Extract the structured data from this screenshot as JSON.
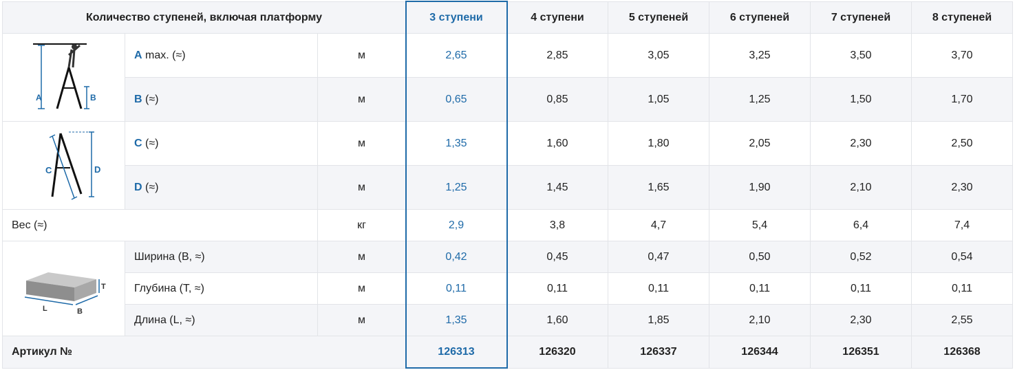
{
  "header": {
    "title": "Количество ступеней, включая платформу",
    "columns": [
      "3 ступени",
      "4 ступени",
      "5 ступеней",
      "6 ступеней",
      "7 ступеней",
      "8 ступеней"
    ]
  },
  "rows": [
    {
      "letter": "A",
      "label": "max. (≈)",
      "unit": "м",
      "values": [
        "2,65",
        "2,85",
        "3,05",
        "3,25",
        "3,50",
        "3,70"
      ]
    },
    {
      "letter": "B",
      "label": "(≈)",
      "unit": "м",
      "values": [
        "0,65",
        "0,85",
        "1,05",
        "1,25",
        "1,50",
        "1,70"
      ]
    },
    {
      "letter": "C",
      "label": "(≈)",
      "unit": "м",
      "values": [
        "1,35",
        "1,60",
        "1,80",
        "2,05",
        "2,30",
        "2,50"
      ]
    },
    {
      "letter": "D",
      "label": "(≈)",
      "unit": "м",
      "values": [
        "1,25",
        "1,45",
        "1,65",
        "1,90",
        "2,10",
        "2,30"
      ]
    },
    {
      "label": "Вес (≈)",
      "unit": "кг",
      "values": [
        "2,9",
        "3,8",
        "4,7",
        "5,4",
        "6,4",
        "7,4"
      ]
    },
    {
      "label": "Ширина (B, ≈)",
      "unit": "м",
      "values": [
        "0,42",
        "0,45",
        "0,47",
        "0,50",
        "0,52",
        "0,54"
      ]
    },
    {
      "label": "Глубина (T, ≈)",
      "unit": "м",
      "values": [
        "0,11",
        "0,11",
        "0,11",
        "0,11",
        "0,11",
        "0,11"
      ]
    },
    {
      "label": "Длина (L, ≈)",
      "unit": "м",
      "values": [
        "1,35",
        "1,60",
        "1,85",
        "2,10",
        "2,30",
        "2,55"
      ]
    }
  ],
  "article": {
    "label": "Артикул №",
    "values": [
      "126313",
      "126320",
      "126337",
      "126344",
      "126351",
      "126368"
    ]
  },
  "diagrams": {
    "ladder_height": {
      "letters": [
        "A",
        "B"
      ]
    },
    "ladder_length": {
      "letters": [
        "C",
        "D"
      ]
    },
    "package": {
      "letters": [
        "T",
        "L",
        "B"
      ]
    }
  },
  "colors": {
    "accent": "#1e6aa8",
    "shade": "#f4f5f8",
    "border": "#e2e4e8"
  },
  "selected_column": "3 ступени"
}
